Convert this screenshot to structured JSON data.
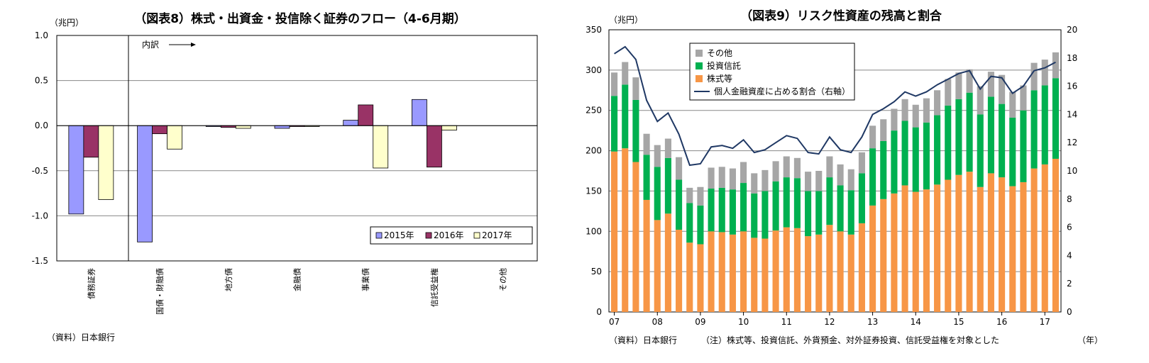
{
  "chart_data": [
    {
      "type": "bar",
      "title": "（図表8）株式・出資金・投信除く証券のフロー（4-6月期）",
      "unit_label": "（兆円）",
      "ylim": [
        -1.5,
        1.0
      ],
      "yticks": [
        "1.0",
        "0.5",
        "0.0",
        "-0.5",
        "-1.0",
        "-1.5"
      ],
      "categories": [
        "債務証券",
        "国債・財融債",
        "地方債",
        "金融債",
        "事業債",
        "信託受益権",
        "その他"
      ],
      "annotation": "内訳",
      "series": [
        {
          "name": "2015年",
          "color": "#9999ff",
          "values": [
            -0.98,
            -1.29,
            -0.01,
            -0.03,
            0.06,
            0.29,
            0.0
          ]
        },
        {
          "name": "2016年",
          "color": "#993366",
          "values": [
            -0.35,
            -0.09,
            -0.02,
            -0.01,
            0.23,
            -0.46,
            0.0
          ]
        },
        {
          "name": "2017年",
          "color": "#ffffcc",
          "values": [
            -0.82,
            -0.26,
            -0.03,
            -0.01,
            -0.47,
            -0.05,
            0.0
          ]
        }
      ],
      "source": "（資料）日本銀行"
    },
    {
      "type": "bar",
      "title": "（図表9）リスク性資産の残高と割合",
      "unit_label": "（兆円）",
      "ylim": [
        0,
        350
      ],
      "y2lim": [
        0,
        20
      ],
      "yticks": [
        "350",
        "300",
        "250",
        "200",
        "150",
        "100",
        "50",
        "0"
      ],
      "y2ticks": [
        "20",
        "18",
        "16",
        "14",
        "12",
        "10",
        "8",
        "6",
        "4",
        "2",
        "0"
      ],
      "xticks": [
        "07",
        "08",
        "09",
        "10",
        "11",
        "12",
        "13",
        "14",
        "15",
        "16",
        "17"
      ],
      "xunit": "（年）",
      "series": [
        {
          "name": "株式等",
          "color": "#f79646",
          "values": [
            199,
            203,
            186,
            139,
            114,
            122,
            102,
            86,
            84,
            100,
            99,
            96,
            100,
            92,
            91,
            101,
            105,
            104,
            94,
            96,
            108,
            100,
            96,
            110,
            132,
            140,
            147,
            157,
            149,
            152,
            158,
            164,
            170,
            174,
            155,
            172,
            167,
            156,
            161,
            178,
            183,
            190
          ]
        },
        {
          "name": "投資信託",
          "color": "#00b050",
          "values": [
            69,
            79,
            77,
            56,
            66,
            69,
            62,
            49,
            48,
            53,
            55,
            56,
            60,
            55,
            59,
            61,
            62,
            62,
            56,
            54,
            59,
            57,
            55,
            62,
            71,
            72,
            78,
            80,
            80,
            83,
            86,
            92,
            94,
            98,
            90,
            95,
            91,
            85,
            89,
            97,
            98,
            100
          ]
        },
        {
          "name": "その他",
          "color": "#a6a6a6",
          "values": [
            29,
            28,
            28,
            26,
            27,
            24,
            28,
            19,
            23,
            26,
            26,
            26,
            26,
            25,
            26,
            25,
            26,
            25,
            24,
            25,
            26,
            26,
            26,
            26,
            28,
            27,
            27,
            27,
            28,
            30,
            31,
            33,
            33,
            29,
            35,
            31,
            36,
            32,
            31,
            34,
            32,
            32
          ]
        },
        {
          "name": "個人金融資産に占める割合（右軸）",
          "color": "#1f3864",
          "values": [
            18.3,
            18.8,
            17.9,
            15.0,
            13.5,
            14.1,
            12.6,
            10.4,
            10.5,
            11.7,
            11.8,
            11.6,
            12.2,
            11.3,
            11.5,
            12.0,
            12.5,
            12.3,
            11.3,
            11.2,
            12.4,
            11.5,
            11.3,
            12.4,
            14.0,
            14.4,
            14.9,
            15.6,
            15.3,
            15.6,
            16.1,
            16.5,
            16.9,
            17.1,
            15.8,
            16.7,
            16.6,
            15.5,
            16.0,
            17.1,
            17.3,
            17.7
          ]
        }
      ],
      "source": "（資料）日本銀行",
      "note": "（注）株式等、投資信託、外貨預金、対外証券投資、信託受益権を対象とした"
    }
  ]
}
